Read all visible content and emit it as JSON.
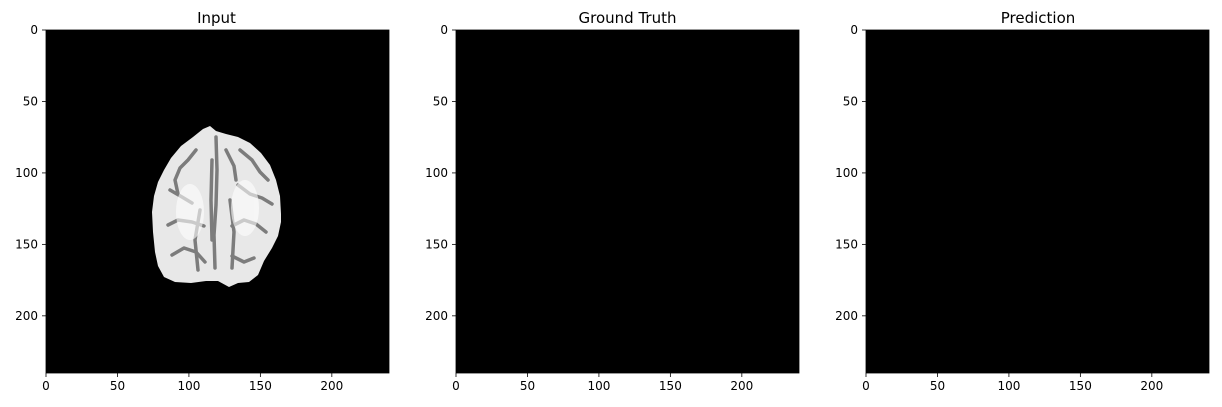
{
  "chart_data": [
    {
      "type": "heatmap",
      "title": "Input",
      "xlabel": "",
      "ylabel": "",
      "xlim": [
        0,
        240
      ],
      "ylim": [
        240,
        0
      ],
      "xticks": [
        0,
        50,
        100,
        150,
        200
      ],
      "yticks": [
        0,
        50,
        100,
        150,
        200
      ],
      "image_content": "brain-mri-slice",
      "background_color": "#000000"
    },
    {
      "type": "heatmap",
      "title": "Ground Truth",
      "xlabel": "",
      "ylabel": "",
      "xlim": [
        0,
        240
      ],
      "ylim": [
        240,
        0
      ],
      "xticks": [
        0,
        50,
        100,
        150,
        200
      ],
      "yticks": [
        0,
        50,
        100,
        150,
        200
      ],
      "image_content": "empty-mask",
      "background_color": "#000000"
    },
    {
      "type": "heatmap",
      "title": "Prediction",
      "xlabel": "",
      "ylabel": "",
      "xlim": [
        0,
        240
      ],
      "ylim": [
        240,
        0
      ],
      "xticks": [
        0,
        50,
        100,
        150,
        200
      ],
      "yticks": [
        0,
        50,
        100,
        150,
        200
      ],
      "image_content": "empty-mask",
      "background_color": "#000000"
    }
  ]
}
